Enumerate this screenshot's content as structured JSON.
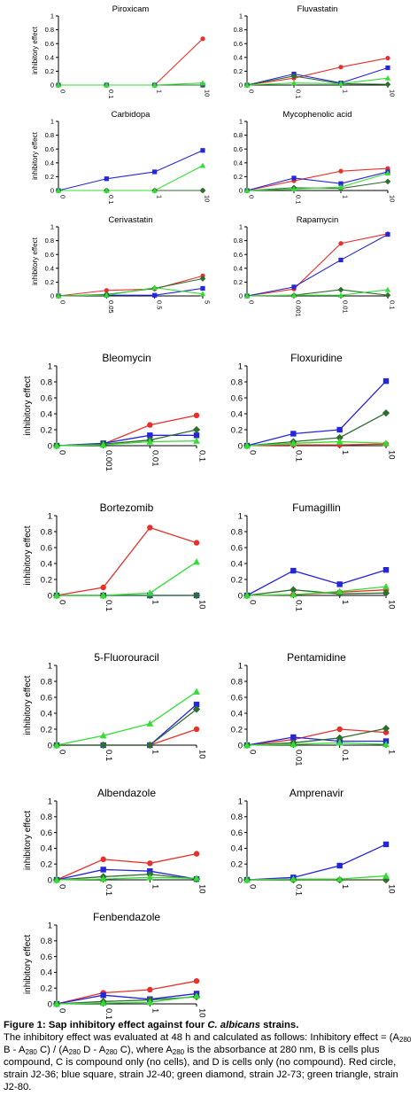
{
  "colors": {
    "red": "#e8302a",
    "blue": "#2626d9",
    "green_diamond": "#2f6e2f",
    "green_triangle": "#33dd33",
    "axis": "#000000"
  },
  "chart_data": [
    {
      "type": "line",
      "title": "Piroxicam",
      "ylabel": "inhibitory effect",
      "ylim": [
        0,
        1
      ],
      "categories": [
        "0",
        "0.1",
        "1",
        "10"
      ],
      "series": [
        {
          "marker": "circle",
          "color": "red",
          "values": [
            0,
            0,
            0,
            0.67
          ]
        },
        {
          "marker": "square",
          "color": "blue",
          "values": [
            0,
            0,
            0,
            0
          ]
        },
        {
          "marker": "diamond",
          "color": "green_diamond",
          "values": [
            0,
            0,
            0,
            0
          ]
        },
        {
          "marker": "triangle",
          "color": "green_triangle",
          "values": [
            0,
            0,
            0,
            0.03
          ]
        }
      ]
    },
    {
      "type": "line",
      "title": "Fluvastatin",
      "ylabel": "",
      "ylim": [
        0,
        1
      ],
      "categories": [
        "0",
        "0.1",
        "1",
        "10"
      ],
      "series": [
        {
          "marker": "circle",
          "color": "red",
          "values": [
            0,
            0.1,
            0.26,
            0.39
          ]
        },
        {
          "marker": "square",
          "color": "blue",
          "values": [
            0,
            0.16,
            0.03,
            0.25
          ]
        },
        {
          "marker": "diamond",
          "color": "green_diamond",
          "values": [
            0,
            0.13,
            0.02,
            0.01
          ]
        },
        {
          "marker": "triangle",
          "color": "green_triangle",
          "values": [
            0,
            0.03,
            0.02,
            0.1
          ]
        }
      ]
    },
    {
      "type": "line",
      "title": "Carbidopa",
      "ylabel": "inhibitory effect",
      "ylim": [
        0,
        1
      ],
      "categories": [
        "0",
        "0.1",
        "1",
        "10"
      ],
      "series": [
        {
          "marker": "circle",
          "color": "red",
          "values": [
            0,
            0,
            0,
            0
          ]
        },
        {
          "marker": "square",
          "color": "blue",
          "values": [
            0,
            0.17,
            0.27,
            0.58
          ]
        },
        {
          "marker": "diamond",
          "color": "green_diamond",
          "values": [
            0,
            0,
            0,
            0
          ]
        },
        {
          "marker": "triangle",
          "color": "green_triangle",
          "values": [
            0,
            0,
            0,
            0.36
          ]
        }
      ]
    },
    {
      "type": "line",
      "title": "Mycophenolic acid",
      "ylabel": "",
      "ylim": [
        0,
        1
      ],
      "categories": [
        "0",
        "0.1",
        "1",
        "10"
      ],
      "series": [
        {
          "marker": "circle",
          "color": "red",
          "values": [
            0,
            0.14,
            0.28,
            0.32
          ]
        },
        {
          "marker": "square",
          "color": "blue",
          "values": [
            0,
            0.18,
            0.1,
            0.27
          ]
        },
        {
          "marker": "diamond",
          "color": "green_diamond",
          "values": [
            0,
            0.04,
            0.03,
            0.13
          ]
        },
        {
          "marker": "triangle",
          "color": "green_triangle",
          "values": [
            0,
            0.02,
            0.05,
            0.25
          ]
        }
      ]
    },
    {
      "type": "line",
      "title": "Cerivastatin",
      "ylabel": "inhibitory effect",
      "ylim": [
        0,
        1
      ],
      "categories": [
        "0",
        "0.05",
        "0.5",
        "5"
      ],
      "series": [
        {
          "marker": "circle",
          "color": "red",
          "values": [
            0,
            0.08,
            0.1,
            0.29
          ]
        },
        {
          "marker": "square",
          "color": "blue",
          "values": [
            0,
            0.01,
            0.01,
            0.11
          ]
        },
        {
          "marker": "diamond",
          "color": "green_diamond",
          "values": [
            0,
            0.02,
            0.11,
            0.25
          ]
        },
        {
          "marker": "triangle",
          "color": "green_triangle",
          "values": [
            0,
            0.01,
            0.12,
            0.03
          ]
        }
      ]
    },
    {
      "type": "line",
      "title": "Rapamycin",
      "ylabel": "",
      "ylim": [
        0,
        1
      ],
      "categories": [
        "0",
        "0.001",
        "0.01",
        "0.1"
      ],
      "series": [
        {
          "marker": "circle",
          "color": "red",
          "values": [
            0,
            0.1,
            0.76,
            0.9
          ]
        },
        {
          "marker": "square",
          "color": "blue",
          "values": [
            0,
            0.13,
            0.52,
            0.89
          ]
        },
        {
          "marker": "diamond",
          "color": "green_diamond",
          "values": [
            0,
            0.01,
            0.09,
            0.01
          ]
        },
        {
          "marker": "triangle",
          "color": "green_triangle",
          "values": [
            0,
            0.01,
            0.01,
            0.09
          ]
        }
      ]
    },
    {
      "type": "line",
      "title": "Bleomycin",
      "ylabel": "inhibitory effect",
      "ylim": [
        0,
        1
      ],
      "categories": [
        "0",
        "0.001",
        "0.01",
        "0.1"
      ],
      "series": [
        {
          "marker": "circle",
          "color": "red",
          "values": [
            0,
            0.02,
            0.26,
            0.38
          ]
        },
        {
          "marker": "square",
          "color": "blue",
          "values": [
            0,
            0.03,
            0.13,
            0.13
          ]
        },
        {
          "marker": "diamond",
          "color": "green_diamond",
          "values": [
            0,
            0.02,
            0.07,
            0.2
          ]
        },
        {
          "marker": "triangle",
          "color": "green_triangle",
          "values": [
            0,
            0.01,
            0.05,
            0.06
          ]
        }
      ]
    },
    {
      "type": "line",
      "title": "Floxuridine",
      "ylabel": "",
      "ylim": [
        0,
        1
      ],
      "categories": [
        "0",
        "0.1",
        "1",
        "10"
      ],
      "series": [
        {
          "marker": "circle",
          "color": "red",
          "values": [
            0,
            0.01,
            0.01,
            0.02
          ]
        },
        {
          "marker": "square",
          "color": "blue",
          "values": [
            0,
            0.15,
            0.2,
            0.81
          ]
        },
        {
          "marker": "diamond",
          "color": "green_diamond",
          "values": [
            0,
            0.05,
            0.1,
            0.41
          ]
        },
        {
          "marker": "triangle",
          "color": "green_triangle",
          "values": [
            0,
            0.03,
            0.05,
            0.03
          ]
        }
      ]
    },
    {
      "type": "line",
      "title": "Bortezomib",
      "ylabel": "inhibitory effect",
      "ylim": [
        0,
        1
      ],
      "categories": [
        "0",
        "0.1",
        "1",
        "10"
      ],
      "series": [
        {
          "marker": "circle",
          "color": "red",
          "values": [
            0,
            0.1,
            0.85,
            0.66
          ]
        },
        {
          "marker": "square",
          "color": "blue",
          "values": [
            0,
            0,
            0,
            0
          ]
        },
        {
          "marker": "diamond",
          "color": "green_diamond",
          "values": [
            0,
            0,
            0,
            0
          ]
        },
        {
          "marker": "triangle",
          "color": "green_triangle",
          "values": [
            0,
            0,
            0.03,
            0.42
          ]
        }
      ]
    },
    {
      "type": "line",
      "title": "Fumagillin",
      "ylabel": "",
      "ylim": [
        0,
        1
      ],
      "categories": [
        "0",
        "0.1",
        "1",
        "10"
      ],
      "series": [
        {
          "marker": "circle",
          "color": "red",
          "values": [
            0,
            0.01,
            0.04,
            0.07
          ]
        },
        {
          "marker": "square",
          "color": "blue",
          "values": [
            0,
            0.31,
            0.14,
            0.32
          ]
        },
        {
          "marker": "diamond",
          "color": "green_diamond",
          "values": [
            0,
            0.07,
            0.02,
            0.03
          ]
        },
        {
          "marker": "triangle",
          "color": "green_triangle",
          "values": [
            0,
            0.01,
            0.05,
            0.11
          ]
        }
      ]
    },
    {
      "type": "line",
      "title": "5-Fluorouracil",
      "ylabel": "inhibitory effect",
      "ylim": [
        0,
        1
      ],
      "categories": [
        "0",
        "0.1",
        "1",
        "10"
      ],
      "series": [
        {
          "marker": "circle",
          "color": "red",
          "values": [
            0,
            0,
            0,
            0.2
          ]
        },
        {
          "marker": "square",
          "color": "blue",
          "values": [
            0,
            0,
            0,
            0.51
          ]
        },
        {
          "marker": "diamond",
          "color": "green_diamond",
          "values": [
            0,
            0,
            0,
            0.45
          ]
        },
        {
          "marker": "triangle",
          "color": "green_triangle",
          "values": [
            0,
            0.12,
            0.27,
            0.67
          ]
        }
      ]
    },
    {
      "type": "line",
      "title": "Pentamidine",
      "ylabel": "",
      "ylim": [
        0,
        1
      ],
      "categories": [
        "0",
        "0.01",
        "0.1",
        "1"
      ],
      "series": [
        {
          "marker": "circle",
          "color": "red",
          "values": [
            0,
            0.07,
            0.2,
            0.16
          ]
        },
        {
          "marker": "square",
          "color": "blue",
          "values": [
            0,
            0.1,
            0.05,
            0.05
          ]
        },
        {
          "marker": "diamond",
          "color": "green_diamond",
          "values": [
            0,
            0.03,
            0.09,
            0.21
          ]
        },
        {
          "marker": "triangle",
          "color": "green_triangle",
          "values": [
            0,
            0.01,
            0.03,
            0.01
          ]
        }
      ]
    },
    {
      "type": "line",
      "title": "Albendazole",
      "ylabel": "inhibitory effect",
      "ylim": [
        0,
        1
      ],
      "categories": [
        "0",
        "0.1",
        "1",
        "10"
      ],
      "series": [
        {
          "marker": "circle",
          "color": "red",
          "values": [
            0,
            0.26,
            0.21,
            0.33
          ]
        },
        {
          "marker": "square",
          "color": "blue",
          "values": [
            0,
            0.13,
            0.11,
            0.01
          ]
        },
        {
          "marker": "diamond",
          "color": "green_diamond",
          "values": [
            0,
            0.04,
            0.07,
            0.01
          ]
        },
        {
          "marker": "triangle",
          "color": "green_triangle",
          "values": [
            0,
            0.01,
            0.03,
            0.02
          ]
        }
      ]
    },
    {
      "type": "line",
      "title": "Amprenavir",
      "ylabel": "",
      "ylim": [
        0,
        1
      ],
      "categories": [
        "0",
        "0.1",
        "1",
        "10"
      ],
      "series": [
        {
          "marker": "circle",
          "color": "red",
          "values": [
            0,
            0,
            0,
            0
          ]
        },
        {
          "marker": "square",
          "color": "blue",
          "values": [
            0,
            0.03,
            0.18,
            0.45
          ]
        },
        {
          "marker": "diamond",
          "color": "green_diamond",
          "values": [
            0,
            0,
            0,
            0
          ]
        },
        {
          "marker": "triangle",
          "color": "green_triangle",
          "values": [
            0,
            0.01,
            0.01,
            0.05
          ]
        }
      ]
    },
    {
      "type": "line",
      "title": "Fenbendazole",
      "ylabel": "inhibitory effect",
      "ylim": [
        0,
        1
      ],
      "categories": [
        "0",
        "0.1",
        "1",
        "10"
      ],
      "series": [
        {
          "marker": "circle",
          "color": "red",
          "values": [
            0,
            0.14,
            0.18,
            0.29
          ]
        },
        {
          "marker": "square",
          "color": "blue",
          "values": [
            0,
            0.11,
            0.06,
            0.13
          ]
        },
        {
          "marker": "diamond",
          "color": "green_diamond",
          "values": [
            0,
            0.03,
            0.05,
            0.09
          ]
        },
        {
          "marker": "triangle",
          "color": "green_triangle",
          "values": [
            0,
            0.01,
            0.02,
            0.1
          ]
        }
      ]
    }
  ],
  "caption": {
    "title_prefix": "Figure 1: Sap inhibitory effect against four ",
    "title_species": "C. albicans",
    "title_suffix": " strains.",
    "body_1": "The inhibitory effect was evaluated at 48 h and calculated as follows: Inhibitory effect = (A",
    "sub_1": "280",
    "body_2": " B - A",
    "sub_2": "280",
    "body_3": " C) / (A",
    "sub_3": "280",
    "body_4": " D - A",
    "sub_4": "280",
    "body_5": " C), where A",
    "sub_5": "280",
    "body_6": " is the absorbance at 280 nm, B is cells plus compound, C is compound only (no cells), and D is cells only (no compound). Red circle, strain J2-36; blue square, strain J2-40; green diamond, strain J2-73; green triangle, strain J2-80."
  }
}
